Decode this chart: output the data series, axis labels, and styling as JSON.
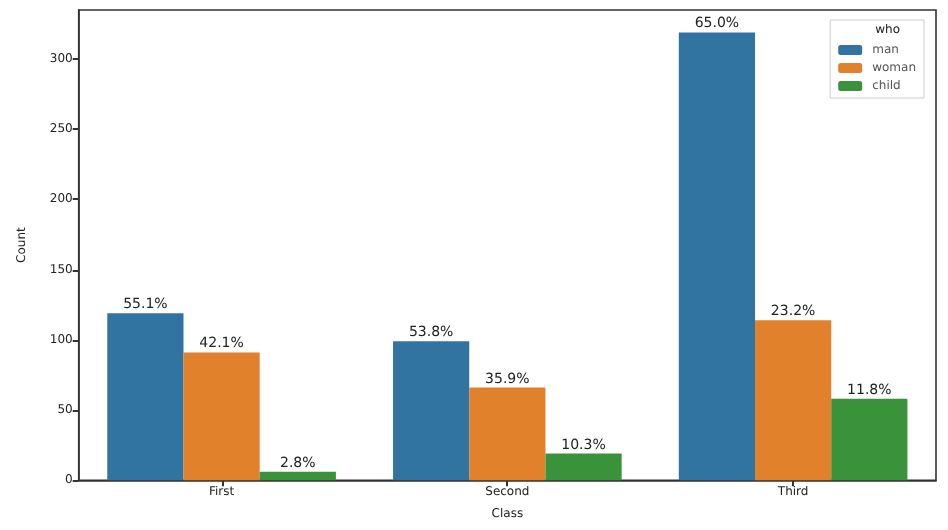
{
  "chart_data": {
    "type": "bar",
    "xlabel": "Class",
    "ylabel": "Count",
    "legend_title": "who",
    "categories": [
      "First",
      "Second",
      "Third"
    ],
    "series": [
      {
        "name": "man",
        "color": "#3274a1",
        "values": [
          119,
          99,
          319
        ]
      },
      {
        "name": "woman",
        "color": "#e1812c",
        "values": [
          91,
          66,
          114
        ]
      },
      {
        "name": "child",
        "color": "#3a923a",
        "values": [
          6,
          19,
          58
        ]
      }
    ],
    "annotations": [
      "55.1%",
      "42.1%",
      "2.8%",
      "53.8%",
      "35.9%",
      "10.3%",
      "65.0%",
      "23.2%",
      "11.8%"
    ],
    "ylim": [
      0,
      335
    ],
    "yticks": [
      0,
      50,
      100,
      150,
      200,
      250,
      300
    ],
    "grid": false,
    "legend": "top right"
  }
}
